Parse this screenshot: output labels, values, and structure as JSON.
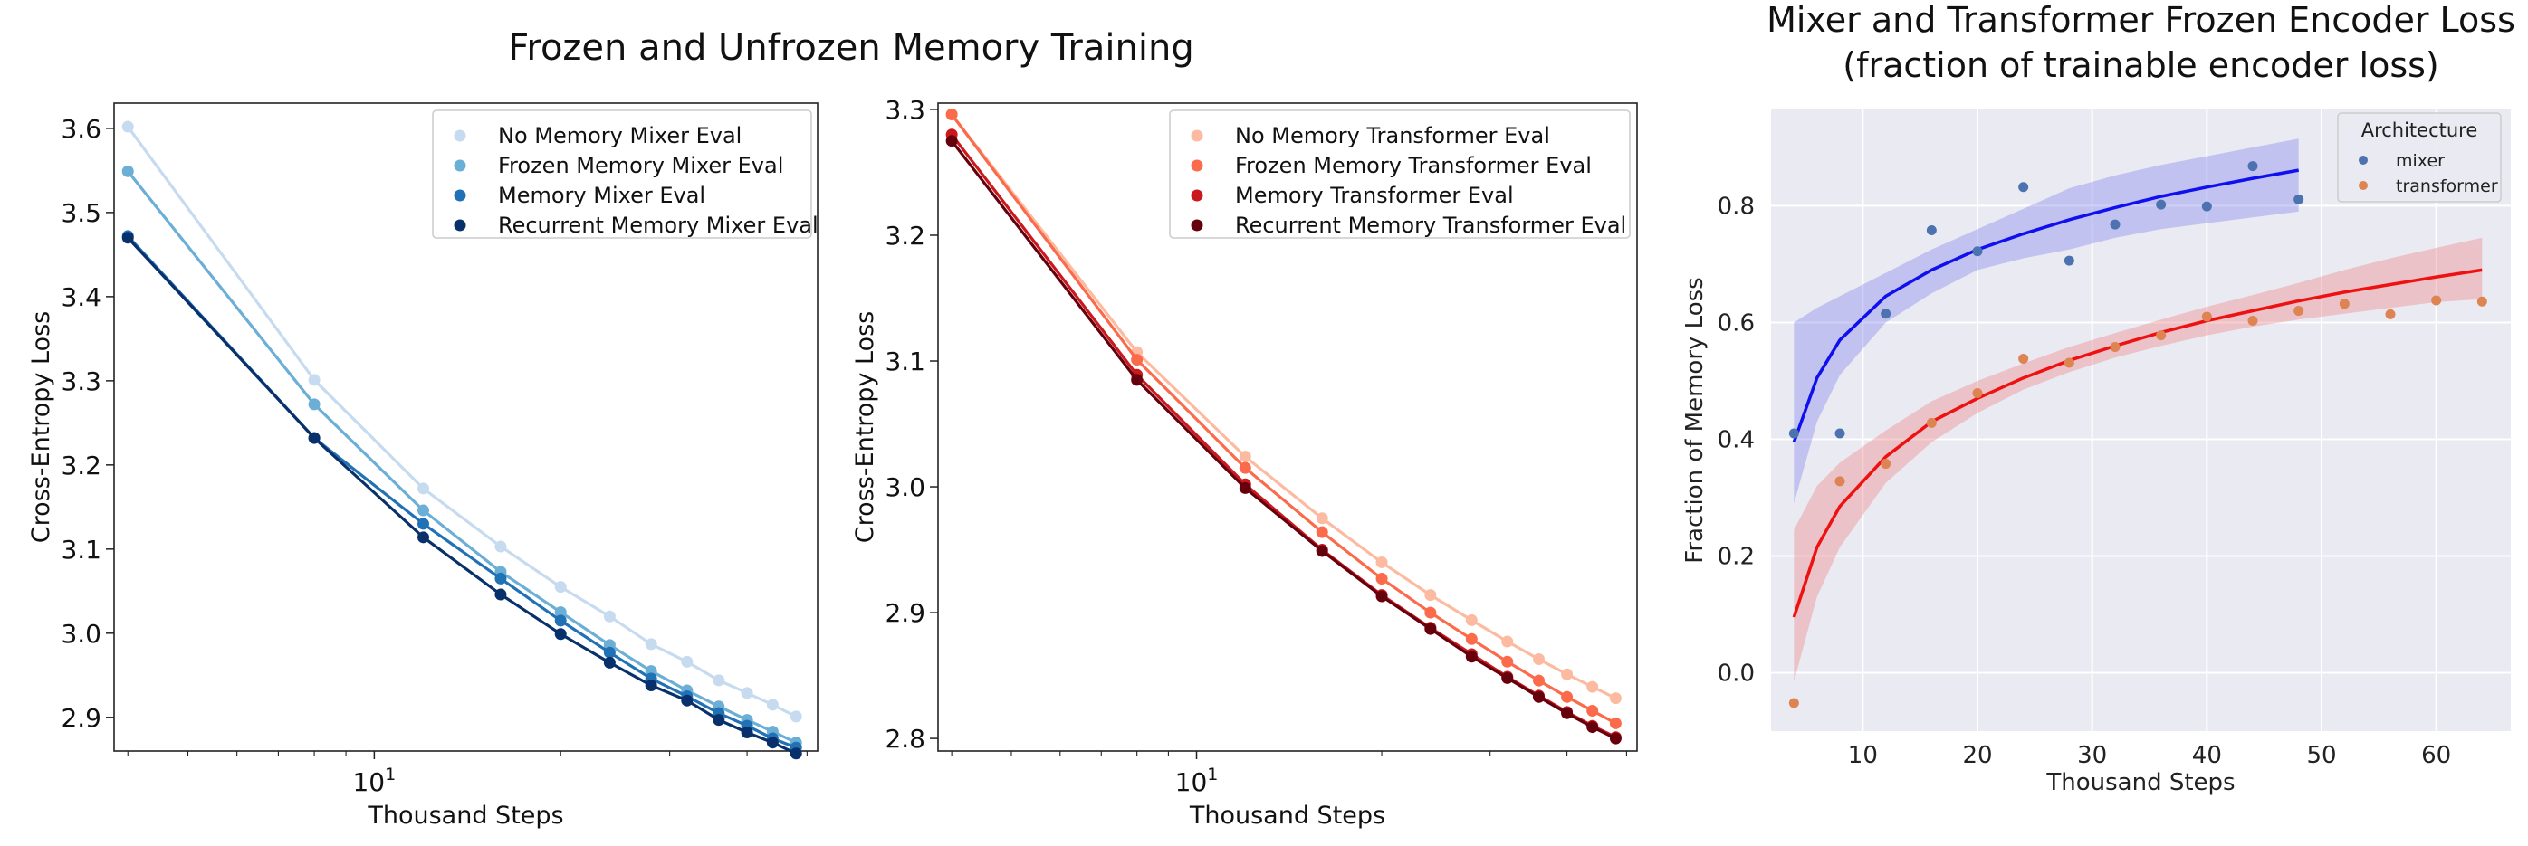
{
  "suptitle": "Frozen and Unfrozen Memory Training",
  "chart_data": [
    {
      "type": "line",
      "title": "",
      "xlabel": "Thousand Steps",
      "ylabel": "Cross-Entropy Loss",
      "xscale": "log",
      "xlim": [
        3.8,
        52
      ],
      "ylim": [
        2.86,
        3.63
      ],
      "yticks": [
        2.9,
        3.0,
        3.1,
        3.2,
        3.3,
        3.4,
        3.5,
        3.6
      ],
      "yticklabels": [
        "2.9",
        "3.0",
        "3.1",
        "3.2",
        "3.3",
        "3.4",
        "3.5",
        "3.6"
      ],
      "xticks": [
        10
      ],
      "xticklabels": [
        "10"
      ],
      "legend_position": "top-right",
      "x": [
        4,
        8,
        12,
        16,
        20,
        24,
        28,
        32,
        36,
        40,
        44,
        48
      ],
      "series": [
        {
          "name": "No Memory Mixer Eval",
          "color": "#c6dbef",
          "values": [
            3.602,
            3.301,
            3.172,
            3.103,
            3.055,
            3.02,
            2.987,
            2.966,
            2.944,
            2.929,
            2.915,
            2.901
          ]
        },
        {
          "name": "Frozen Memory Mixer Eval",
          "color": "#6baed6",
          "values": [
            3.549,
            3.272,
            3.146,
            3.073,
            3.025,
            2.986,
            2.955,
            2.932,
            2.913,
            2.897,
            2.883,
            2.87
          ]
        },
        {
          "name": "Memory Mixer Eval",
          "color": "#2171b5",
          "values": [
            3.472,
            3.232,
            3.13,
            3.065,
            3.015,
            2.977,
            2.946,
            2.925,
            2.905,
            2.89,
            2.875,
            2.864
          ]
        },
        {
          "name": "Recurrent Memory Mixer Eval",
          "color": "#08306b",
          "values": [
            3.47,
            3.232,
            3.114,
            3.046,
            2.999,
            2.965,
            2.938,
            2.92,
            2.897,
            2.882,
            2.87,
            2.857
          ]
        }
      ]
    },
    {
      "type": "line",
      "title": "",
      "xlabel": "Thousand Steps",
      "ylabel": "Cross-Entropy Loss",
      "xscale": "log",
      "xlim": [
        3.8,
        52
      ],
      "ylim": [
        2.79,
        3.305
      ],
      "yticks": [
        2.8,
        2.9,
        3.0,
        3.1,
        3.2,
        3.3
      ],
      "yticklabels": [
        "2.8",
        "2.9",
        "3.0",
        "3.1",
        "3.2",
        "3.3"
      ],
      "xticks": [
        10
      ],
      "xticklabels": [
        "10"
      ],
      "legend_position": "top-right",
      "x": [
        4,
        8,
        12,
        16,
        20,
        24,
        28,
        32,
        36,
        40,
        44,
        48
      ],
      "series": [
        {
          "name": "No Memory Transformer Eval",
          "color": "#fcbba1",
          "values": [
            3.296,
            3.107,
            3.024,
            2.975,
            2.94,
            2.914,
            2.894,
            2.877,
            2.863,
            2.851,
            2.841,
            2.832
          ]
        },
        {
          "name": "Frozen Memory Transformer Eval",
          "color": "#fb6a4a",
          "values": [
            3.296,
            3.101,
            3.015,
            2.964,
            2.927,
            2.9,
            2.879,
            2.861,
            2.846,
            2.833,
            2.822,
            2.812
          ]
        },
        {
          "name": "Memory Transformer Eval",
          "color": "#cb181d",
          "values": [
            3.28,
            3.089,
            3.002,
            2.95,
            2.914,
            2.888,
            2.867,
            2.849,
            2.834,
            2.821,
            2.81,
            2.801
          ]
        },
        {
          "name": "Recurrent Memory Transformer Eval",
          "color": "#67000d",
          "values": [
            3.275,
            3.085,
            2.999,
            2.949,
            2.913,
            2.887,
            2.865,
            2.848,
            2.833,
            2.82,
            2.809,
            2.8
          ]
        }
      ]
    },
    {
      "type": "scatter",
      "title": "Mixer and Transformer Frozen Encoder Loss\n(fraction of trainable encoder loss)",
      "title_lines": [
        "Mixer and Transformer Frozen Encoder Loss",
        "(fraction of trainable encoder loss)"
      ],
      "xlabel": "Thousand Steps",
      "ylabel": "Fraction of Memory Loss",
      "xlim": [
        2,
        66.5
      ],
      "ylim": [
        -0.1,
        0.965
      ],
      "xticks": [
        10,
        20,
        30,
        40,
        50,
        60
      ],
      "xticklabels": [
        "10",
        "20",
        "30",
        "40",
        "50",
        "60"
      ],
      "yticks": [
        0.0,
        0.2,
        0.4,
        0.6,
        0.8
      ],
      "yticklabels": [
        "0.0",
        "0.2",
        "0.4",
        "0.6",
        "0.8"
      ],
      "grid": true,
      "background": "#eaeaf2",
      "legend_title": "Architecture",
      "legend_position": "top-right",
      "series": [
        {
          "name": "mixer",
          "color": "#4c72b0",
          "fit_color": "#1010ee",
          "band_color": "#8888ee",
          "x": [
            4,
            8,
            12,
            16,
            20,
            24,
            28,
            32,
            36,
            40,
            44,
            48
          ],
          "y": [
            0.41,
            0.41,
            0.615,
            0.758,
            0.722,
            0.832,
            0.706,
            0.768,
            0.802,
            0.799,
            0.868,
            0.811
          ],
          "fit_x": [
            4,
            6,
            8,
            12,
            16,
            20,
            24,
            28,
            32,
            36,
            40,
            44,
            48
          ],
          "fit_y": [
            0.395,
            0.505,
            0.57,
            0.645,
            0.69,
            0.725,
            0.752,
            0.776,
            0.797,
            0.816,
            0.832,
            0.847,
            0.861
          ],
          "band_lo": [
            0.29,
            0.43,
            0.51,
            0.6,
            0.65,
            0.69,
            0.71,
            0.725,
            0.745,
            0.76,
            0.77,
            0.78,
            0.79
          ],
          "band_hi": [
            0.6,
            0.625,
            0.645,
            0.685,
            0.725,
            0.76,
            0.795,
            0.83,
            0.852,
            0.87,
            0.885,
            0.9,
            0.915
          ]
        },
        {
          "name": "transformer",
          "color": "#dd8452",
          "fit_color": "#ee1111",
          "band_color": "#ee8888",
          "x": [
            4,
            8,
            12,
            16,
            20,
            24,
            28,
            32,
            36,
            40,
            44,
            48,
            52,
            56,
            60,
            64
          ],
          "y": [
            -0.052,
            0.328,
            0.358,
            0.428,
            0.479,
            0.538,
            0.531,
            0.558,
            0.578,
            0.61,
            0.603,
            0.62,
            0.632,
            0.614,
            0.638,
            0.636
          ],
          "fit_x": [
            4,
            6,
            8,
            12,
            16,
            20,
            24,
            28,
            32,
            36,
            40,
            44,
            48,
            52,
            56,
            60,
            64
          ],
          "fit_y": [
            0.095,
            0.215,
            0.285,
            0.37,
            0.43,
            0.47,
            0.505,
            0.535,
            0.56,
            0.583,
            0.603,
            0.62,
            0.637,
            0.652,
            0.665,
            0.678,
            0.69
          ],
          "band_lo": [
            -0.015,
            0.13,
            0.215,
            0.325,
            0.395,
            0.445,
            0.485,
            0.515,
            0.54,
            0.56,
            0.578,
            0.593,
            0.605,
            0.615,
            0.625,
            0.635,
            0.64
          ],
          "band_hi": [
            0.245,
            0.32,
            0.36,
            0.415,
            0.465,
            0.5,
            0.53,
            0.558,
            0.582,
            0.605,
            0.627,
            0.647,
            0.668,
            0.69,
            0.71,
            0.728,
            0.745
          ]
        }
      ]
    }
  ]
}
